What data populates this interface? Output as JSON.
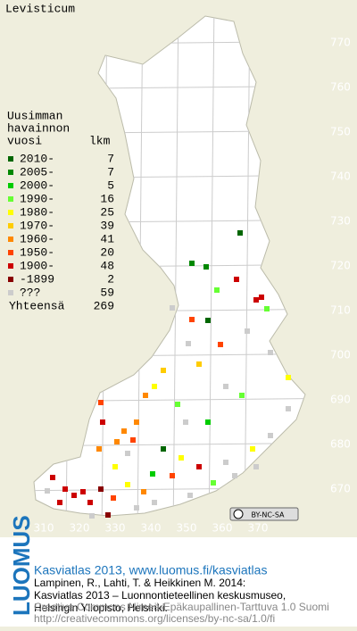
{
  "title": "Levisticum",
  "legend": {
    "header": [
      "Uusimman",
      "havainnon",
      "vuosi"
    ],
    "count_header": "lkm",
    "items": [
      {
        "label": "2010-",
        "count": 7,
        "color": "#006600"
      },
      {
        "label": "2005-",
        "count": 7,
        "color": "#008800"
      },
      {
        "label": "2000-",
        "count": 5,
        "color": "#00cc00"
      },
      {
        "label": "1990-",
        "count": 16,
        "color": "#66ff33"
      },
      {
        "label": "1980-",
        "count": 25,
        "color": "#ffff00"
      },
      {
        "label": "1970-",
        "count": 39,
        "color": "#ffcc00"
      },
      {
        "label": "1960-",
        "count": 41,
        "color": "#ff8800"
      },
      {
        "label": "1950-",
        "count": 20,
        "color": "#ff4400"
      },
      {
        "label": "1900-",
        "count": 48,
        "color": "#cc0000"
      },
      {
        "label": "-1899",
        "count": 2,
        "color": "#880000"
      },
      {
        "label": "???",
        "count": 59,
        "color": "#cccccc"
      }
    ],
    "total_label": "Yhteensä",
    "total": 269
  },
  "grid": {
    "y_labels": [
      770,
      760,
      750,
      740,
      730,
      720,
      710,
      700,
      690,
      680,
      670
    ],
    "x_labels": [
      310,
      320,
      330,
      340,
      350,
      360,
      370
    ]
  },
  "license_badge": "BY-NC-SA",
  "logo": "LUOMUS",
  "footer": {
    "link": "Kasviatlas 2013, www.luomus.fi/kasviatlas",
    "citation": [
      "Lampinen, R., Lahti, T. & Heikkinen M. 2014:",
      "Kasviatlas 2013 – Luonnontieteellinen keskusmuseo,",
      "Helsingin Yliopisto, Helsinki."
    ],
    "license": [
      "Creative Commons Nimeä-Epäkaupallinen-Tarttuva 1.0 Suomi",
      "http://creativecommons.org/licenses/by-nc-sa/1.0/fi"
    ]
  }
}
